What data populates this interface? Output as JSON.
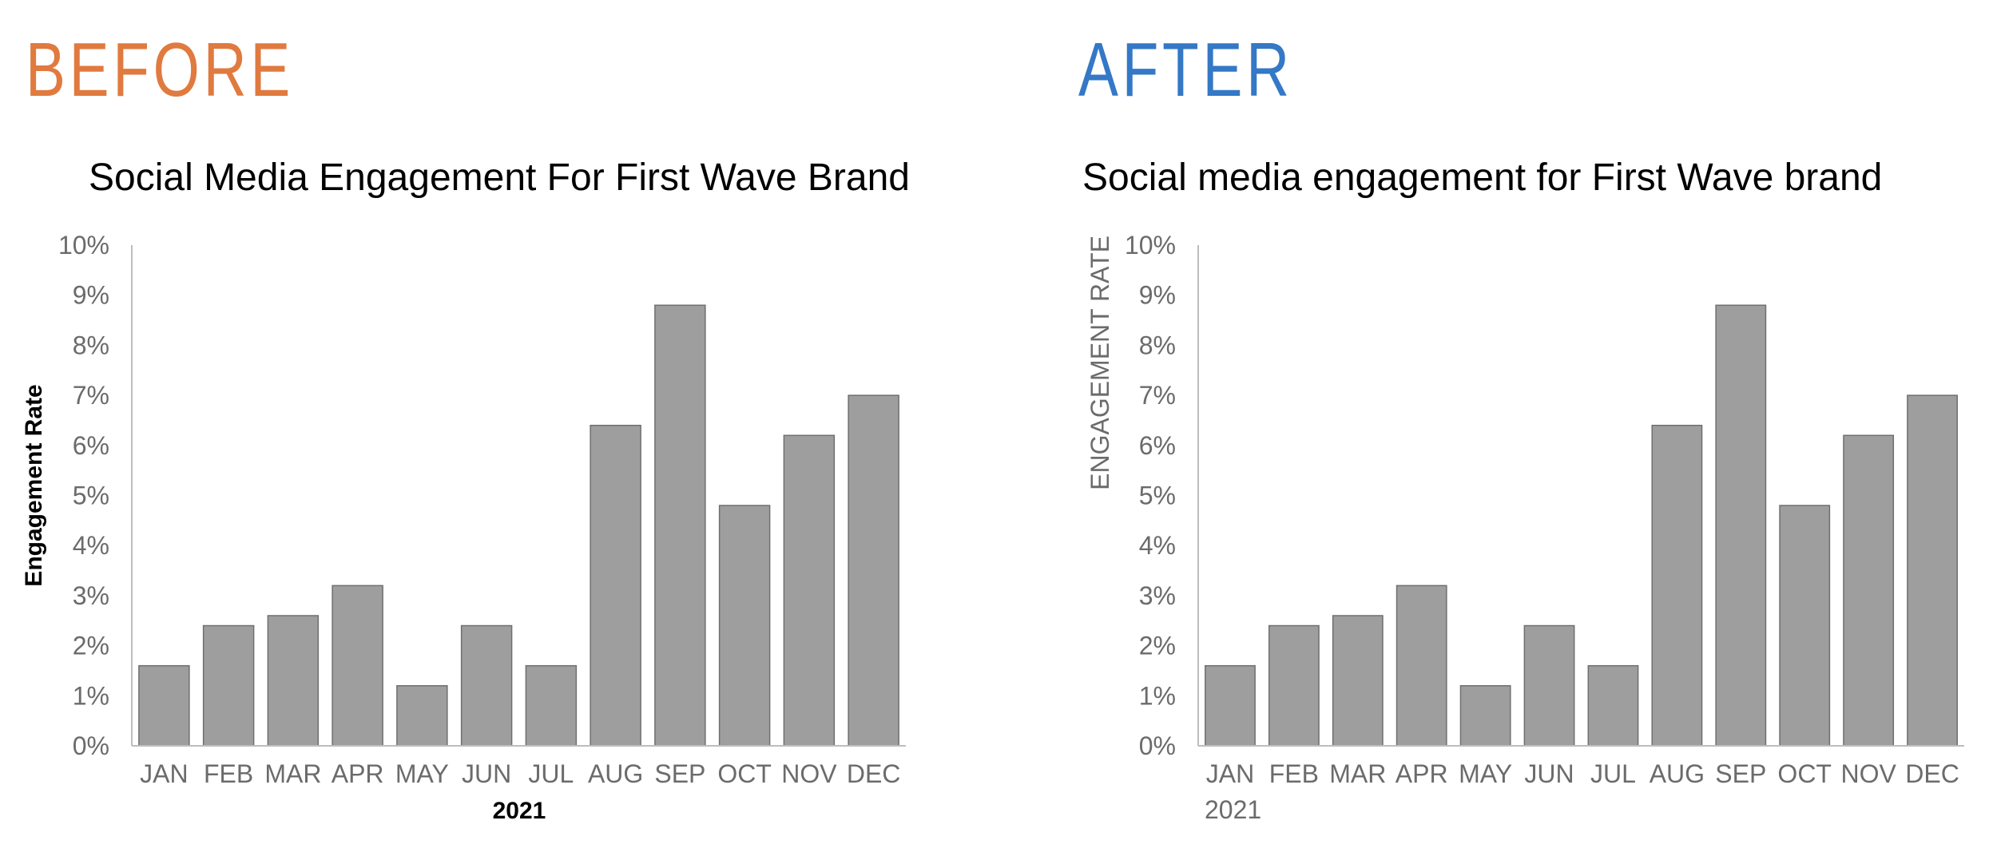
{
  "headings": {
    "before": "BEFORE",
    "after": "AFTER"
  },
  "colors": {
    "before": "#e07a3f",
    "after": "#3478c6",
    "bar_fill": "#9e9e9e",
    "bar_stroke": "#6f6f6f",
    "axis": "#bdbdbd",
    "tick_text": "#6b6b6b"
  },
  "chart_data": [
    {
      "type": "bar",
      "title": "Social Media Engagement For First Wave Brand",
      "xlabel": "2021",
      "ylabel": "Engagement Rate",
      "categories": [
        "JAN",
        "FEB",
        "MAR",
        "APR",
        "MAY",
        "JUN",
        "JUL",
        "AUG",
        "SEP",
        "OCT",
        "NOV",
        "DEC"
      ],
      "values": [
        1.6,
        2.4,
        2.6,
        3.2,
        1.2,
        2.4,
        1.6,
        6.4,
        8.8,
        4.8,
        6.2,
        7.0
      ],
      "ylim": [
        0,
        10
      ],
      "yticks": [
        "0%",
        "1%",
        "2%",
        "3%",
        "4%",
        "5%",
        "6%",
        "7%",
        "8%",
        "9%",
        "10%"
      ],
      "grid": false
    },
    {
      "type": "bar",
      "title": "Social media engagement for First Wave brand",
      "xlabel": "2021",
      "ylabel": "ENGAGEMENT RATE",
      "categories": [
        "JAN",
        "FEB",
        "MAR",
        "APR",
        "MAY",
        "JUN",
        "JUL",
        "AUG",
        "SEP",
        "OCT",
        "NOV",
        "DEC"
      ],
      "values": [
        1.6,
        2.4,
        2.6,
        3.2,
        1.2,
        2.4,
        1.6,
        6.4,
        8.8,
        4.8,
        6.2,
        7.0
      ],
      "ylim": [
        0,
        10
      ],
      "yticks": [
        "0%",
        "1%",
        "2%",
        "3%",
        "4%",
        "5%",
        "6%",
        "7%",
        "8%",
        "9%",
        "10%"
      ],
      "grid": false
    }
  ]
}
